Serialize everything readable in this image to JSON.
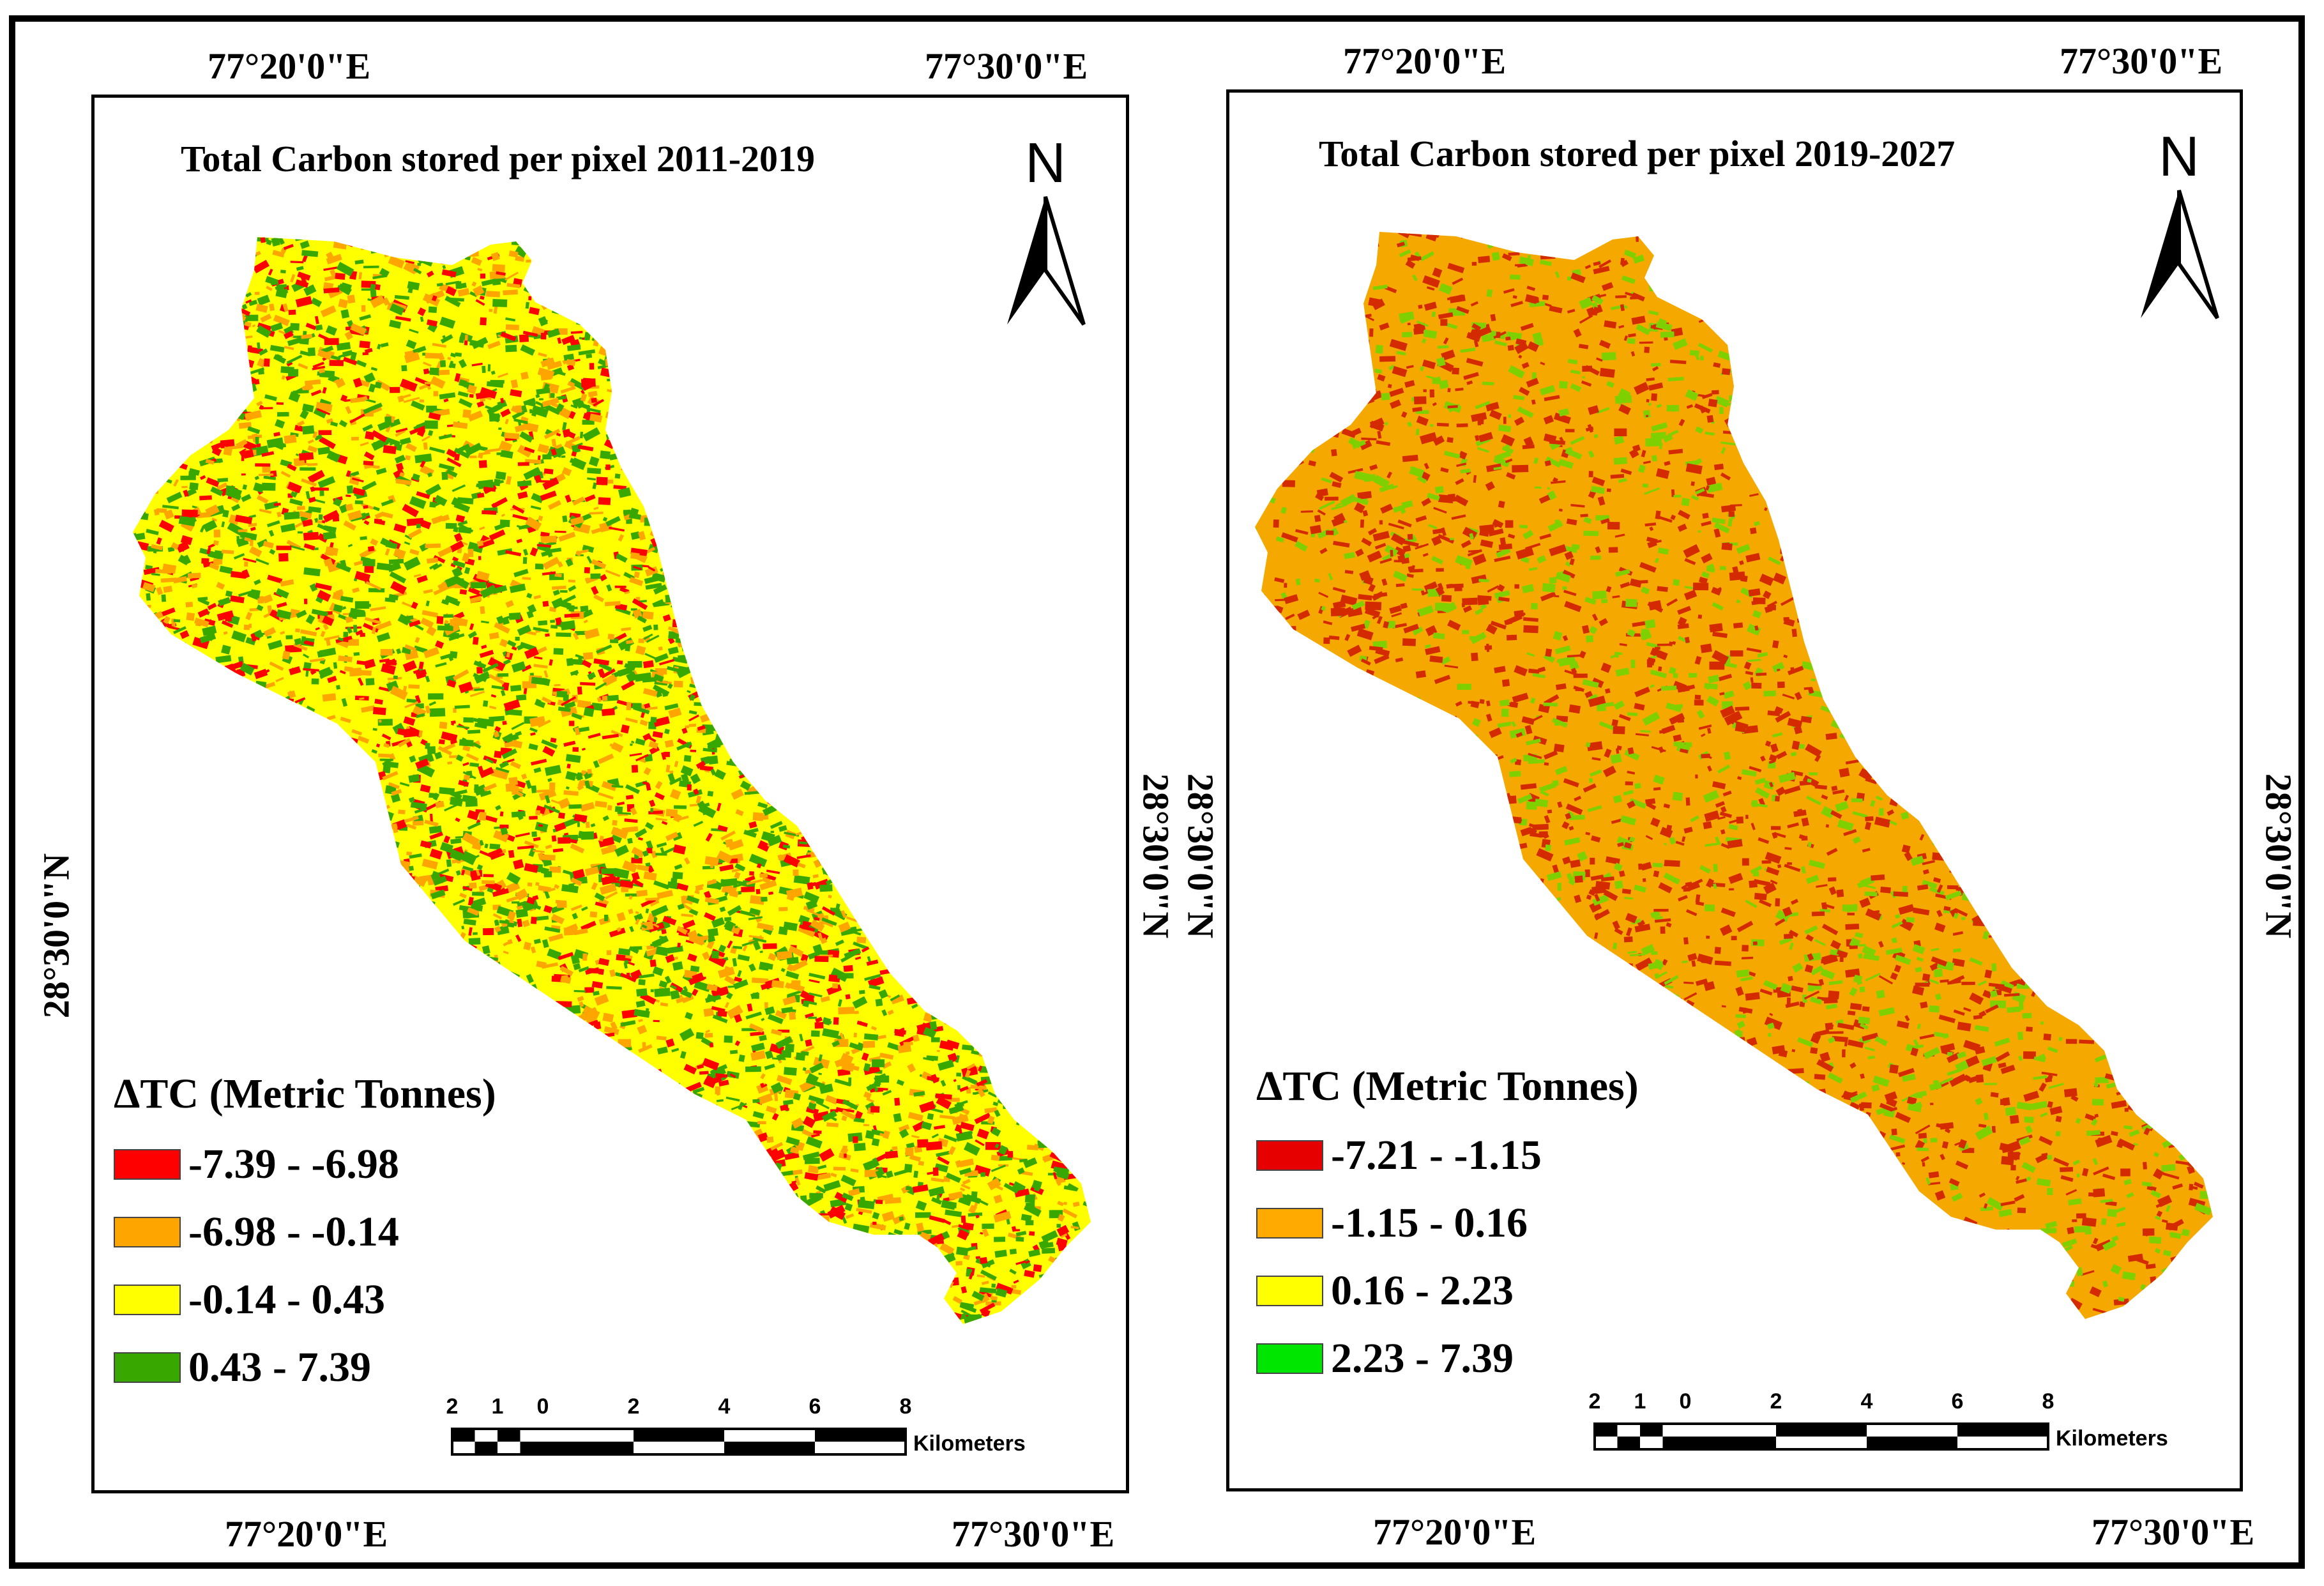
{
  "panels": [
    {
      "title": "Total Carbon stored per pixel 2011-2019",
      "north_label": "N",
      "coords": {
        "top_left": "77°20'0\"E",
        "top_right": "77°30'0\"E",
        "bottom_left": "77°20'0\"E",
        "bottom_right": "77°30'0\"E",
        "left": "28°30'0\"N",
        "right": "28°30'0\"N"
      },
      "legend": {
        "title": "ΔTC (Metric Tonnes)",
        "items": [
          {
            "label": "-7.39 - -6.98",
            "color": "#ff0000"
          },
          {
            "label": "-6.98 - -0.14",
            "color": "#ffa500"
          },
          {
            "label": "-0.14 - 0.43",
            "color": "#ffff00"
          },
          {
            "label": "0.43 - 7.39",
            "color": "#38a800"
          }
        ]
      },
      "scale": {
        "ticks": [
          "2",
          "1",
          "0",
          "2",
          "4",
          "6",
          "8"
        ],
        "unit": "Kilometers"
      },
      "map_base_color": "#ffff00",
      "map_texture_colors": [
        "#38a800",
        "#ffa500",
        "#ff0000"
      ]
    },
    {
      "title": "Total Carbon stored per pixel 2019-2027",
      "north_label": "N",
      "coords": {
        "top_left": "77°20'0\"E",
        "top_right": "77°30'0\"E",
        "bottom_left": "77°20'0\"E",
        "bottom_right": "77°30'0\"E",
        "left": "28°30'0\"N",
        "right": "28°30'0\"N"
      },
      "legend": {
        "title": "ΔTC (Metric Tonnes)",
        "items": [
          {
            "label": "-7.21 - -1.15",
            "color": "#e60000"
          },
          {
            "label": "-1.15 - 0.16",
            "color": "#ffaa00"
          },
          {
            "label": "0.16 - 2.23",
            "color": "#ffff00"
          },
          {
            "label": "2.23 - 7.39",
            "color": "#00e600"
          }
        ]
      },
      "scale": {
        "ticks": [
          "2",
          "1",
          "0",
          "2",
          "4",
          "6",
          "8"
        ],
        "unit": "Kilometers"
      },
      "map_base_color": "#f5a800",
      "map_texture_colors": [
        "#d42a00",
        "#7fd000"
      ]
    }
  ]
}
